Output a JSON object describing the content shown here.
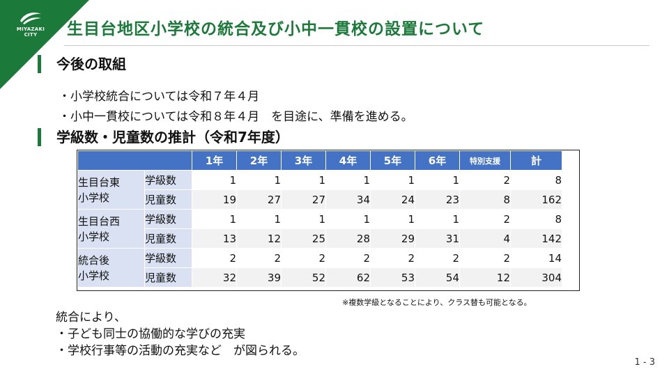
{
  "logo": {
    "text": "MIYAZAKI CITY"
  },
  "title": "生目台地区小学校の統合及び小中一貫校の設置について",
  "section1": {
    "heading": "今後の取組",
    "bullets": [
      "・小学校統合については令和７年４月",
      "・小中一貫校については令和８年４月　を目途に、準備を進める。"
    ]
  },
  "section2": {
    "heading": "学級数・児童数の推計（令和7年度）"
  },
  "table": {
    "headers": [
      "1年",
      "2年",
      "3年",
      "4年",
      "5年",
      "6年",
      "特別支援",
      "計"
    ],
    "schools": [
      {
        "name_line1": "生目台東",
        "name_line2": "小学校",
        "rows": [
          {
            "type": "学級数",
            "values": [
              "1",
              "1",
              "1",
              "1",
              "1",
              "1",
              "2",
              "8"
            ]
          },
          {
            "type": "児童数",
            "values": [
              "19",
              "27",
              "27",
              "34",
              "24",
              "23",
              "8",
              "162"
            ]
          }
        ]
      },
      {
        "name_line1": "生目台西",
        "name_line2": "小学校",
        "rows": [
          {
            "type": "学級数",
            "values": [
              "1",
              "1",
              "1",
              "1",
              "1",
              "1",
              "2",
              "8"
            ]
          },
          {
            "type": "児童数",
            "values": [
              "13",
              "12",
              "25",
              "28",
              "29",
              "31",
              "4",
              "142"
            ]
          }
        ]
      },
      {
        "name_line1": "統合後",
        "name_line2": "小学校",
        "rows": [
          {
            "type": "学級数",
            "values": [
              "2",
              "2",
              "2",
              "2",
              "2",
              "2",
              "2",
              "14"
            ]
          },
          {
            "type": "児童数",
            "values": [
              "32",
              "39",
              "52",
              "62",
              "53",
              "54",
              "12",
              "304"
            ]
          }
        ]
      }
    ],
    "note": "※複数学級となることにより、クラス替も可能となる。"
  },
  "conclusion": {
    "intro": "統合により、",
    "items": [
      "・子ども同士の協働的な学びの充実",
      "・学校行事等の活動の充実など　が図られる。"
    ]
  },
  "colors": {
    "brand_green": "#1b7a3a",
    "header_blue": "#4472c4",
    "label_blue": "#d9e1f2"
  },
  "page_number": "1 - 3"
}
